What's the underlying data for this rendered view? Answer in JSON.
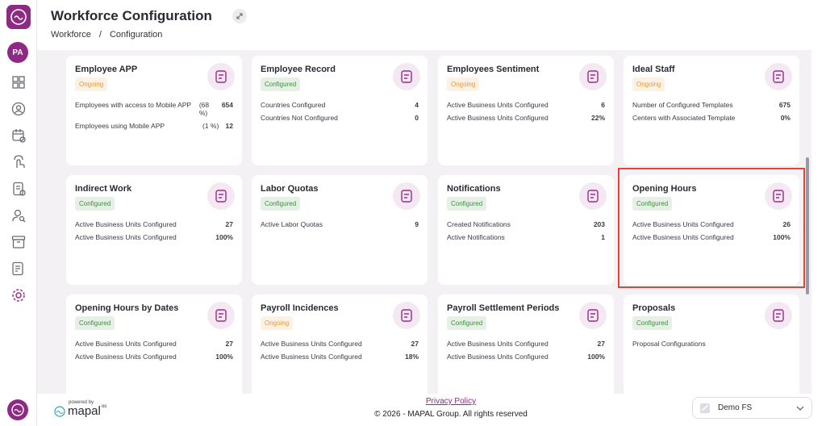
{
  "sidebar": {
    "avatar": "PA"
  },
  "header": {
    "title": "Workforce Configuration",
    "breadcrumb": [
      "Workforce",
      "/",
      "Configuration"
    ]
  },
  "cards": [
    {
      "title": "Employee APP",
      "status": "Ongoing",
      "status_color": "#e29a38",
      "rows": [
        {
          "label": "Employees with access to Mobile APP",
          "extra": "(68 %)",
          "value": "654"
        },
        {
          "label": "Employees using Mobile APP",
          "extra": "(1 %)",
          "value": "12"
        }
      ]
    },
    {
      "title": "Employee Record",
      "status": "Configured",
      "status_color": "#3f8f3f",
      "rows": [
        {
          "label": "Countries Configured",
          "value": "4"
        },
        {
          "label": "Countries Not Configured",
          "value": "0"
        }
      ]
    },
    {
      "title": "Employees Sentiment",
      "status": "Ongoing",
      "status_color": "#e29a38",
      "rows": [
        {
          "label": "Active Business Units Configured",
          "value": "6"
        },
        {
          "label": "Active Business Units Configured",
          "value": "22%"
        }
      ]
    },
    {
      "title": "Ideal Staff",
      "status": "Ongoing",
      "status_color": "#e29a38",
      "rows": [
        {
          "label": "Number of Configured Templates",
          "value": "675"
        },
        {
          "label": "Centers with Associated Template",
          "value": "0%"
        }
      ]
    },
    {
      "title": "Indirect Work",
      "status": "Configured",
      "status_color": "#3f8f3f",
      "rows": [
        {
          "label": "Active Business Units Configured",
          "value": "27"
        },
        {
          "label": "Active Business Units Configured",
          "value": "100%"
        }
      ]
    },
    {
      "title": "Labor Quotas",
      "status": "Configured",
      "status_color": "#3f8f3f",
      "rows": [
        {
          "label": "Active Labor Quotas",
          "value": "9"
        }
      ]
    },
    {
      "title": "Notifications",
      "status": "Configured",
      "status_color": "#3f8f3f",
      "rows": [
        {
          "label": "Created Notifications",
          "value": "203"
        },
        {
          "label": "Active Notifications",
          "value": "1"
        }
      ]
    },
    {
      "title": "Opening Hours",
      "status": "Configured",
      "status_color": "#3f8f3f",
      "rows": [
        {
          "label": "Active Business Units Configured",
          "value": "26"
        },
        {
          "label": "Active Business Units Configured",
          "value": "100%"
        }
      ]
    },
    {
      "title": "Opening Hours by Dates",
      "status": "Configured",
      "status_color": "#3f8f3f",
      "rows": [
        {
          "label": "Active Business Units Configured",
          "value": "27"
        },
        {
          "label": "Active Business Units Configured",
          "value": "100%"
        }
      ]
    },
    {
      "title": "Payroll Incidences",
      "status": "Ongoing",
      "status_color": "#e29a38",
      "rows": [
        {
          "label": "Active Business Units Configured",
          "value": "27"
        },
        {
          "label": "Active Business Units Configured",
          "value": "18%"
        }
      ]
    },
    {
      "title": "Payroll Settlement Periods",
      "status": "Configured",
      "status_color": "#3f8f3f",
      "rows": [
        {
          "label": "Active Business Units Configured",
          "value": "27"
        },
        {
          "label": "Active Business Units Configured",
          "value": "100%"
        }
      ]
    },
    {
      "title": "Proposals",
      "status": "Configured",
      "status_color": "#3f8f3f",
      "rows": [
        {
          "label": "Proposal Configurations"
        }
      ]
    }
  ],
  "footer": {
    "powered_by": "powered by",
    "brand": "mapal",
    "brand_suffix": "os",
    "privacy_link": "Privacy Policy",
    "copyright": "© 2026 - MAPAL Group. All rights reserved",
    "selector": "Demo FS"
  }
}
